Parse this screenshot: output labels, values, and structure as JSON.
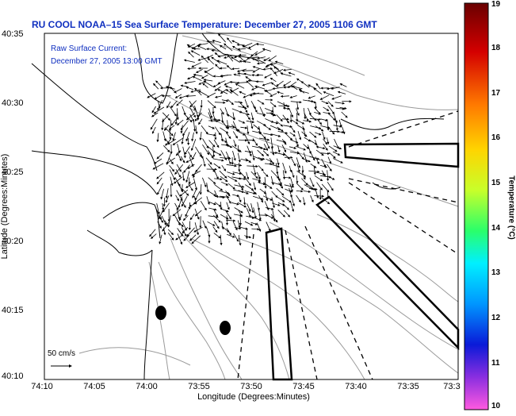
{
  "title": "RU COOL   NOAA–15  Sea Surface Temperature:  December 27, 2005 1106 GMT",
  "inset": {
    "line1": "Raw Surface Current:",
    "line2": "December 27, 2005 13:00 GMT"
  },
  "axes": {
    "xlabel": "Longitude (Degrees:Minutes)",
    "ylabel": "Latitude (Degrees:Minutes)",
    "x_ticks": [
      "74:10",
      "74:05",
      "74:00",
      "73:55",
      "73:50",
      "73:45",
      "73:40",
      "73:35",
      "73:3"
    ],
    "y_ticks": [
      "40:35",
      "40:30",
      "40:25",
      "40:20",
      "40:15",
      "40:10"
    ]
  },
  "colorbar": {
    "label": "Temperature (°C)",
    "ticks": [
      "19",
      "18",
      "17",
      "16",
      "15",
      "14",
      "13",
      "12",
      "11",
      "10"
    ]
  },
  "scale_label": "50 cm/s",
  "colors": {
    "title": "#1030c0",
    "coast": "#000000",
    "contour": "#9a9a9a"
  }
}
